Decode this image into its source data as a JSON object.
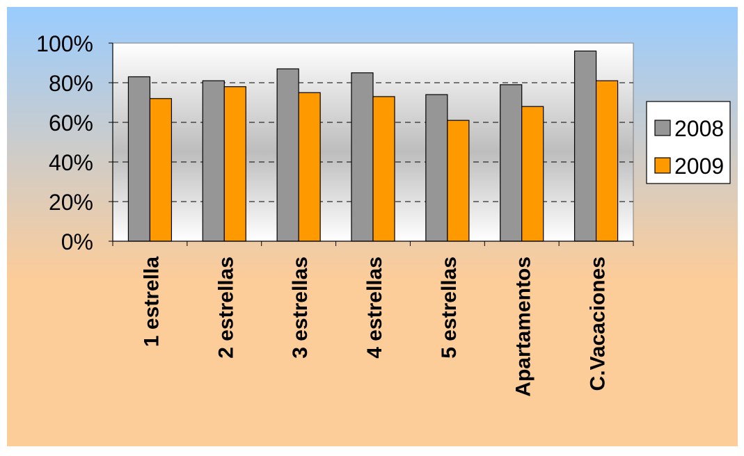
{
  "chart_data": {
    "type": "bar",
    "categories": [
      "1 estrella",
      "2 estrellas",
      "3 estrellas",
      "4 estrellas",
      "5 estrellas",
      "Apartamentos",
      "C.Vacaciones"
    ],
    "series": [
      {
        "name": "2008",
        "values": [
          83,
          81,
          87,
          85,
          74,
          79,
          96
        ],
        "color": "#969696"
      },
      {
        "name": "2009",
        "values": [
          72,
          78,
          75,
          73,
          61,
          68,
          81
        ],
        "color": "#ff9900"
      }
    ],
    "y_ticks": [
      "0%",
      "20%",
      "40%",
      "60%",
      "80%",
      "100%"
    ],
    "ylim": [
      0,
      100
    ],
    "grid": "dashed horizontal",
    "legend_position": "right",
    "background": {
      "top": "#99ccff",
      "bottom": "#fccc99"
    }
  }
}
